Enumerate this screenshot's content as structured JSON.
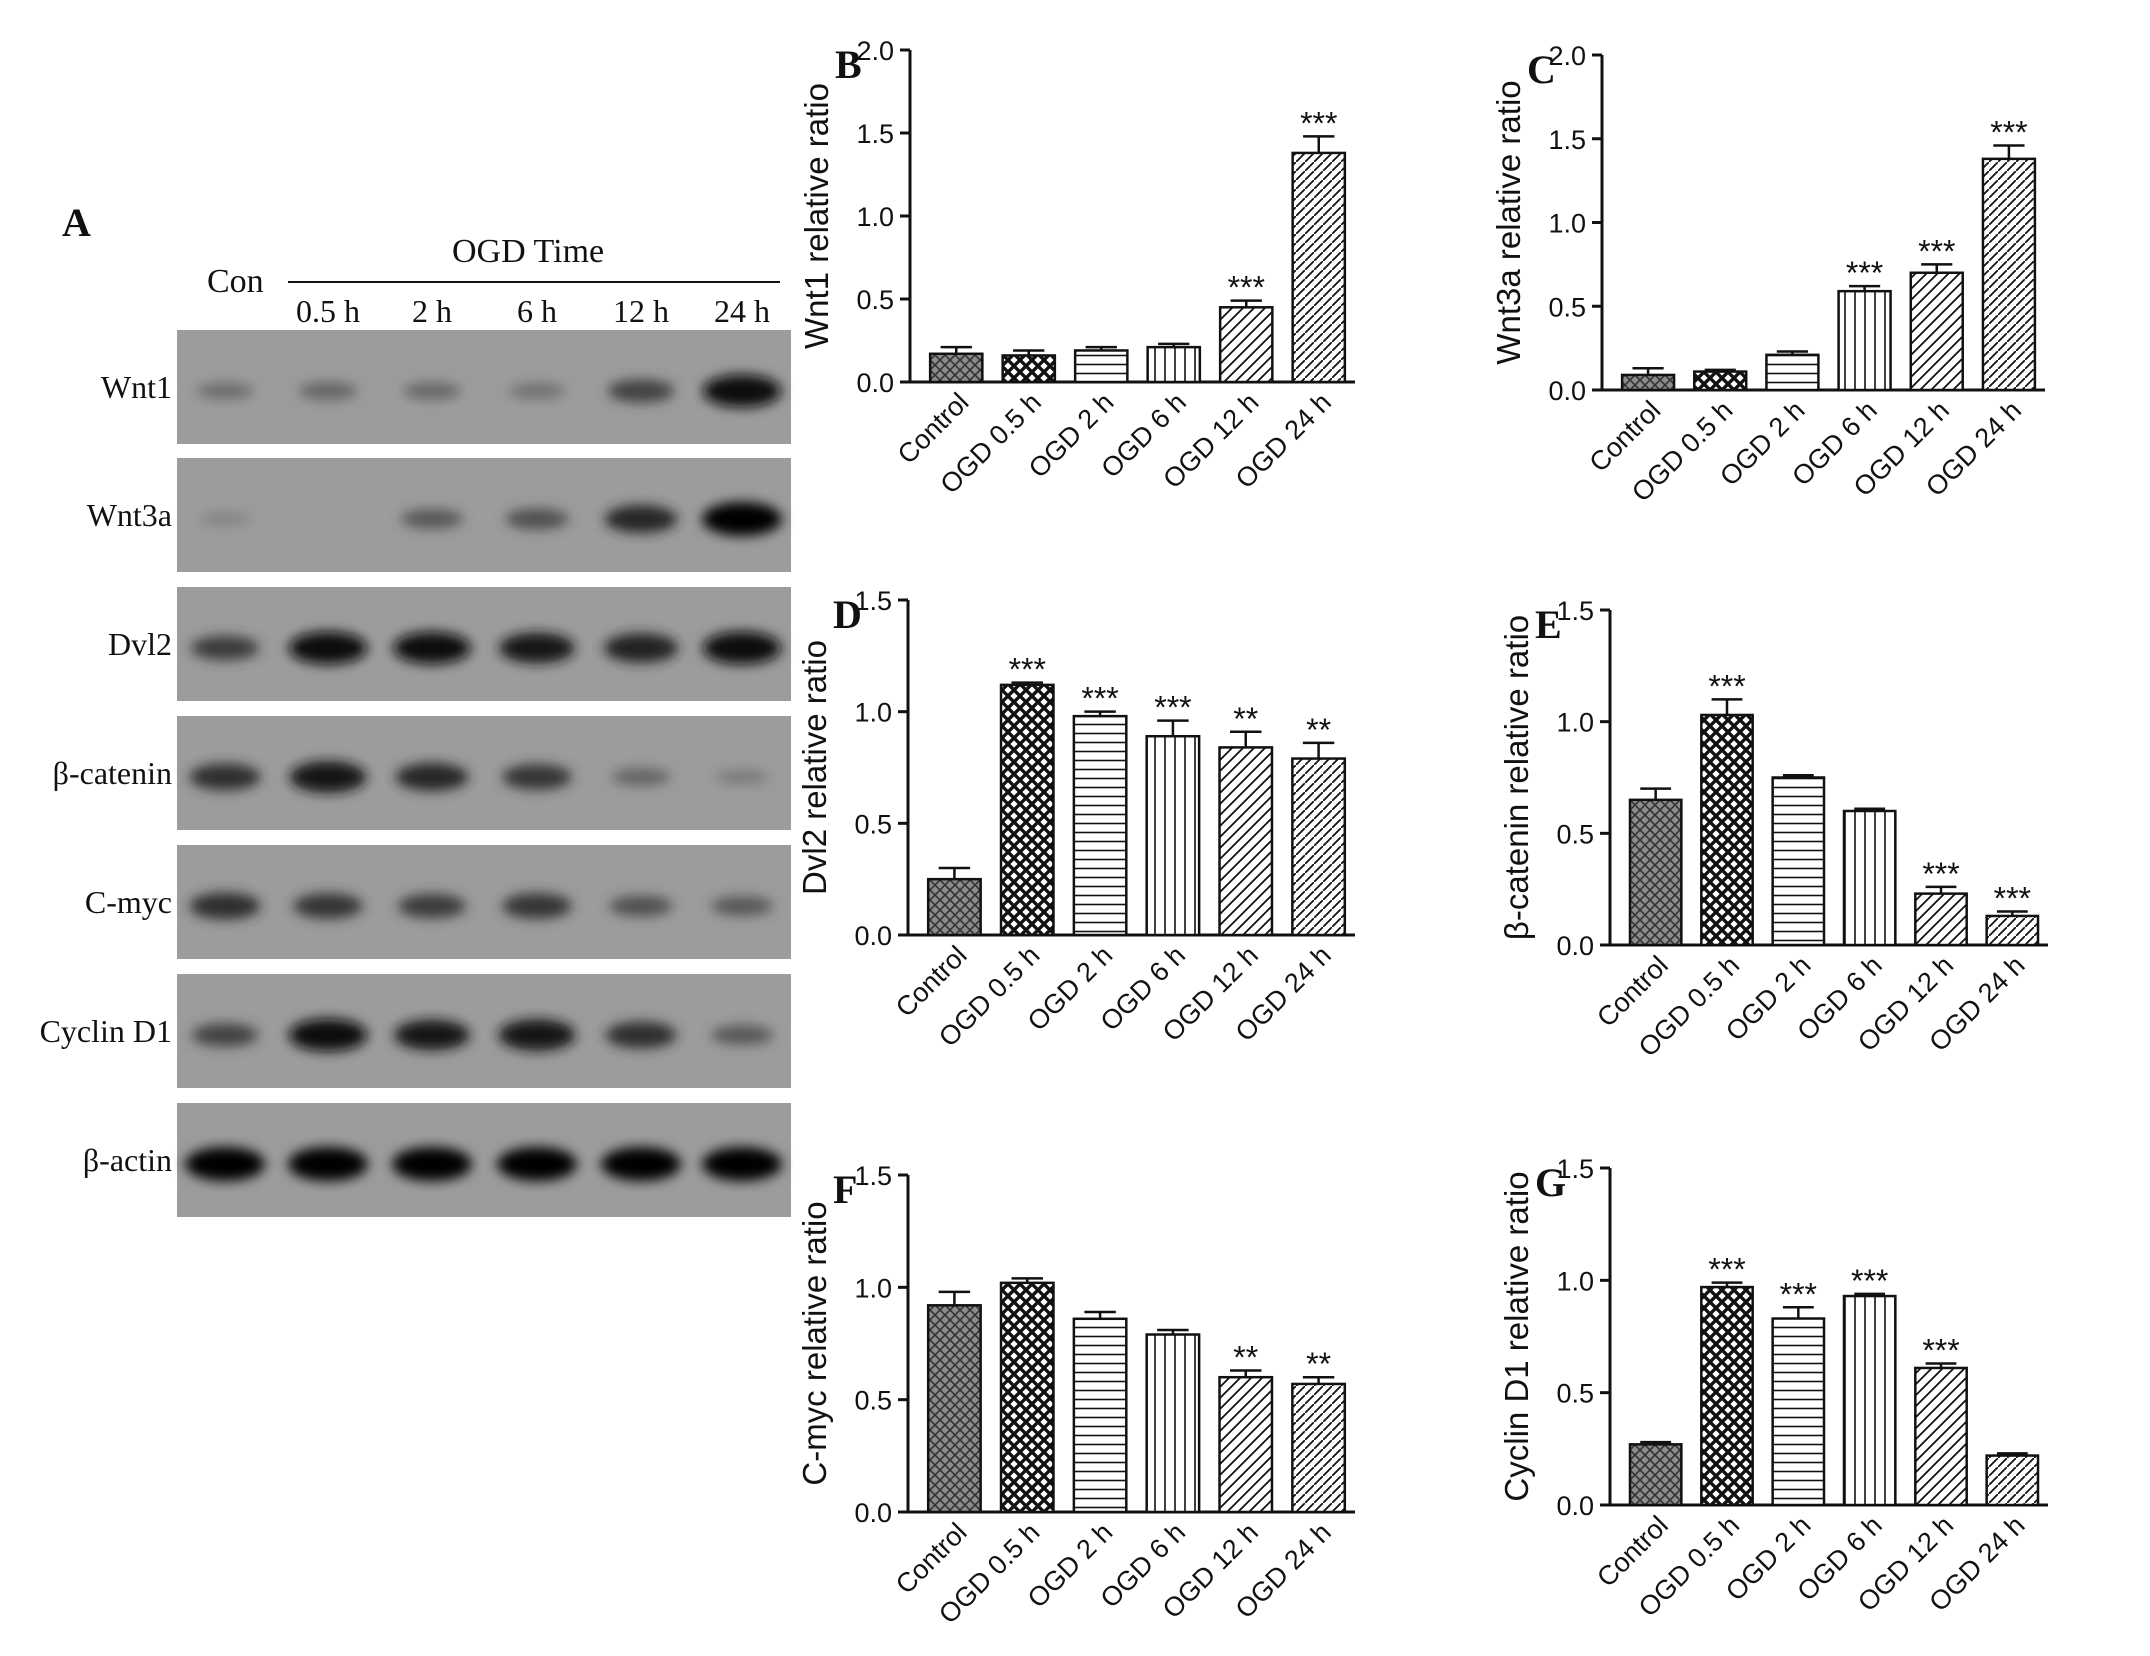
{
  "figure": {
    "blot": {
      "panel_label": "A",
      "control_label": "Con",
      "ogd_time_label": "OGD Time",
      "time_points": [
        "0.5 h",
        "2 h",
        "6 h",
        "12 h",
        "24 h"
      ],
      "rows": [
        {
          "label": "Wnt1",
          "intensity": [
            0.25,
            0.3,
            0.28,
            0.22,
            0.55,
            0.95
          ]
        },
        {
          "label": "Wnt3a",
          "intensity": [
            0.08,
            0.02,
            0.4,
            0.45,
            0.75,
            1.0
          ]
        },
        {
          "label": "Dvl2",
          "intensity": [
            0.6,
            0.95,
            0.92,
            0.85,
            0.8,
            0.95
          ]
        },
        {
          "label": "β-catenin",
          "intensity": [
            0.7,
            0.9,
            0.75,
            0.65,
            0.3,
            0.15
          ]
        },
        {
          "label": "C-myc",
          "intensity": [
            0.7,
            0.65,
            0.6,
            0.65,
            0.45,
            0.4
          ]
        },
        {
          "label": "Cyclin D1",
          "intensity": [
            0.55,
            0.95,
            0.85,
            0.9,
            0.7,
            0.4
          ]
        },
        {
          "label": "β-actin",
          "intensity": [
            1.0,
            1.0,
            1.0,
            1.0,
            1.0,
            1.0
          ]
        }
      ]
    }
  },
  "chart_data": [
    {
      "panel": "B",
      "type": "bar",
      "ylabel": "Wnt1 relative ratio",
      "categories": [
        "Control",
        "OGD 0.5 h",
        "OGD 2 h",
        "OGD 6 h",
        "OGD 12 h",
        "OGD 24 h"
      ],
      "values": [
        0.17,
        0.16,
        0.19,
        0.21,
        0.45,
        1.38
      ],
      "errors": [
        0.04,
        0.03,
        0.02,
        0.02,
        0.04,
        0.1
      ],
      "significance": [
        "",
        "",
        "",
        "",
        "***",
        "***"
      ],
      "ylim": [
        0,
        2.0
      ],
      "yticks": [
        "0.0",
        "0.5",
        "1.0",
        "1.5",
        "2.0"
      ]
    },
    {
      "panel": "C",
      "type": "bar",
      "ylabel": "Wnt3a relative ratio",
      "categories": [
        "Control",
        "OGD 0.5 h",
        "OGD 2 h",
        "OGD 6 h",
        "OGD 12 h",
        "OGD 24 h"
      ],
      "values": [
        0.09,
        0.11,
        0.21,
        0.59,
        0.7,
        1.38
      ],
      "errors": [
        0.04,
        0.01,
        0.02,
        0.03,
        0.05,
        0.08
      ],
      "significance": [
        "",
        "",
        "",
        "***",
        "***",
        "***"
      ],
      "ylim": [
        0,
        2.0
      ],
      "yticks": [
        "0.0",
        "0.5",
        "1.0",
        "1.5",
        "2.0"
      ]
    },
    {
      "panel": "D",
      "type": "bar",
      "ylabel": "Dvl2 relative ratio",
      "categories": [
        "Control",
        "OGD 0.5 h",
        "OGD 2 h",
        "OGD 6 h",
        "OGD 12 h",
        "OGD 24 h"
      ],
      "values": [
        0.25,
        1.12,
        0.98,
        0.89,
        0.84,
        0.79
      ],
      "errors": [
        0.05,
        0.01,
        0.02,
        0.07,
        0.07,
        0.07
      ],
      "significance": [
        "",
        "***",
        "***",
        "***",
        "**",
        "**"
      ],
      "ylim": [
        0,
        1.5
      ],
      "yticks": [
        "0.0",
        "0.5",
        "1.0",
        "1.5"
      ]
    },
    {
      "panel": "E",
      "type": "bar",
      "ylabel": "β-catenin relative ratio",
      "categories": [
        "Control",
        "OGD 0.5 h",
        "OGD 2 h",
        "OGD 6 h",
        "OGD 12 h",
        "OGD 24 h"
      ],
      "values": [
        0.65,
        1.03,
        0.75,
        0.6,
        0.23,
        0.13
      ],
      "errors": [
        0.05,
        0.07,
        0.01,
        0.01,
        0.03,
        0.02
      ],
      "significance": [
        "",
        "***",
        "",
        "",
        "***",
        "***"
      ],
      "ylim": [
        0,
        1.5
      ],
      "yticks": [
        "0.0",
        "0.5",
        "1.0",
        "1.5"
      ]
    },
    {
      "panel": "F",
      "type": "bar",
      "ylabel": "C-myc relative ratio",
      "categories": [
        "Control",
        "OGD 0.5 h",
        "OGD 2 h",
        "OGD 6 h",
        "OGD 12 h",
        "OGD 24 h"
      ],
      "values": [
        0.92,
        1.02,
        0.86,
        0.79,
        0.6,
        0.57
      ],
      "errors": [
        0.06,
        0.02,
        0.03,
        0.02,
        0.03,
        0.03
      ],
      "significance": [
        "",
        "",
        "",
        "",
        "**",
        "**"
      ],
      "ylim": [
        0,
        1.5
      ],
      "yticks": [
        "0.0",
        "0.5",
        "1.0",
        "1.5"
      ]
    },
    {
      "panel": "G",
      "type": "bar",
      "ylabel": "Cyclin D1 relative ratio",
      "categories": [
        "Control",
        "OGD 0.5 h",
        "OGD 2 h",
        "OGD 6 h",
        "OGD 12 h",
        "OGD 24 h"
      ],
      "values": [
        0.27,
        0.97,
        0.83,
        0.93,
        0.61,
        0.22
      ],
      "errors": [
        0.01,
        0.02,
        0.05,
        0.01,
        0.02,
        0.01
      ],
      "significance": [
        "",
        "***",
        "***",
        "***",
        "***",
        ""
      ],
      "ylim": [
        0,
        1.5
      ],
      "yticks": [
        "0.0",
        "0.5",
        "1.0",
        "1.5"
      ]
    }
  ]
}
